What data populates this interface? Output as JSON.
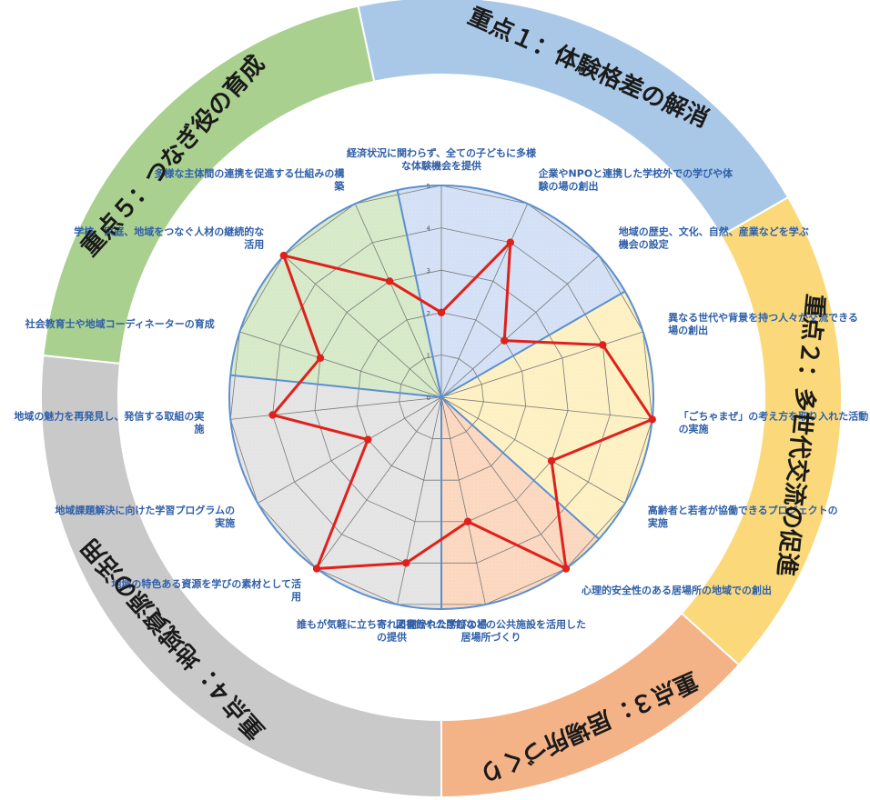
{
  "chart_data": {
    "type": "radar",
    "r_range": [
      0,
      5
    ],
    "ticks": [
      "0",
      "1",
      "2",
      "3",
      "4",
      "5"
    ],
    "groups": [
      {
        "label": "重点１：体験格差の解消",
        "color": "#a9c8e8",
        "sector_color": "#d3e0f5"
      },
      {
        "label": "重点２：多世代交流の促進",
        "color": "#fbd97a",
        "sector_color": "#fdf0c2"
      },
      {
        "label": "重点３：居場所づくり",
        "color": "#f4b287",
        "sector_color": "#fbd7bf"
      },
      {
        "label": "重点４：地域資源の活用",
        "color": "#c9c9c9",
        "sector_color": "#e4e4e4"
      },
      {
        "label": "重点５：つなぎ役の育成",
        "color": "#a9d08e",
        "sector_color": "#d6e9c8"
      }
    ],
    "axes": [
      {
        "group": 0,
        "label": [
          "経済状況に関わらず、全ての子どもに多様",
          "な体験機会を提供"
        ],
        "value": 2
      },
      {
        "group": 0,
        "label": [
          "企業やNPOと連携した学校外での学びや体",
          "験の場の創出"
        ],
        "value": 4
      },
      {
        "group": 0,
        "label": [
          "地域の歴史、文化、自然、産業などを学ぶ",
          "機会の設定"
        ],
        "value": 2
      },
      {
        "group": 1,
        "label": [
          "異なる世代や背景を持つ人々が交流できる",
          "場の創出"
        ],
        "value": 4
      },
      {
        "group": 1,
        "label": [
          "「ごちゃまぜ」の考え方を取り入れた活動",
          "の実施"
        ],
        "value": 5
      },
      {
        "group": 1,
        "label": [
          "高齢者と若者が協働できるプロジェクトの",
          "実施"
        ],
        "value": 3
      },
      {
        "group": 2,
        "label": [
          "心理的安全性のある居場所の地域での創出"
        ],
        "value": 5
      },
      {
        "group": 2,
        "label": [
          "図書館や公民館などの公共施設を活用した",
          "居場所づくり"
        ],
        "value": 3
      },
      {
        "group": 3,
        "label": [
          "誰もが気軽に立ち寄れる開かれた学びの場",
          "の提供"
        ],
        "value": 4
      },
      {
        "group": 3,
        "label": [
          "地域の特色ある資源を学びの素材として活",
          "用"
        ],
        "value": 5
      },
      {
        "group": 3,
        "label": [
          "地域課題解決に向けた学習プログラムの",
          "実施"
        ],
        "value": 2
      },
      {
        "group": 3,
        "label": [
          "地域の魅力を再発見し、発信する取組の実",
          "施"
        ],
        "value": 4
      },
      {
        "group": 4,
        "label": [
          "社会教育士や地域コーディネーターの育成"
        ],
        "value": 3
      },
      {
        "group": 4,
        "label": [
          "学校、家庭、地域をつなぐ人材の継続的な",
          "活用"
        ],
        "value": 5
      },
      {
        "group": 4,
        "label": [
          "多様な主体間の連携を促進する仕組みの構",
          "築"
        ],
        "value": 3
      }
    ],
    "series": [
      {
        "values": [
          2,
          4,
          2,
          4,
          5,
          3,
          5,
          3,
          4,
          5,
          2,
          4,
          3,
          5,
          3
        ],
        "color": "#e0201b"
      }
    ]
  }
}
